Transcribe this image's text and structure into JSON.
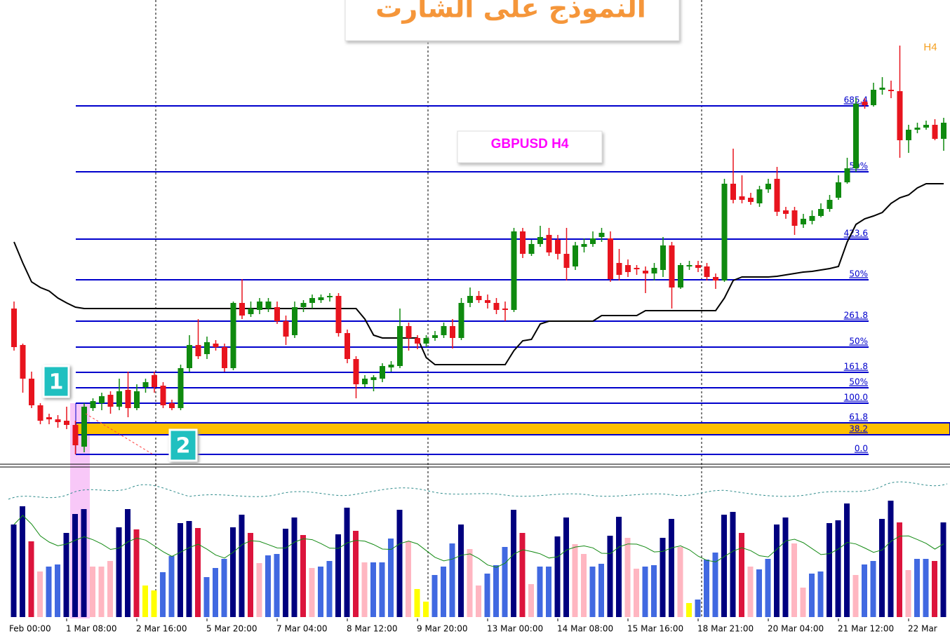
{
  "chart_data": {
    "type": "candlestick",
    "title": "النموذج على الشارت",
    "subtitle": "GBPUSD H4",
    "timeframe": "H4",
    "callouts": [
      "1",
      "2"
    ],
    "ylim": [
      0,
      660
    ],
    "bull_color": "#0f8a0f",
    "bear_color": "#e8141e",
    "ohlc": [
      [
        220,
        230,
        160,
        165
      ],
      [
        168,
        170,
        100,
        120
      ],
      [
        120,
        130,
        78,
        82
      ],
      [
        82,
        85,
        55,
        60
      ],
      [
        65,
        70,
        55,
        62
      ],
      [
        62,
        68,
        50,
        58
      ],
      [
        60,
        80,
        48,
        54
      ],
      [
        54,
        60,
        12,
        25
      ],
      [
        23,
        85,
        15,
        80
      ],
      [
        78,
        92,
        74,
        88
      ],
      [
        85,
        100,
        75,
        95
      ],
      [
        97,
        102,
        70,
        80
      ],
      [
        80,
        120,
        75,
        102
      ],
      [
        104,
        130,
        65,
        78
      ],
      [
        78,
        112,
        75,
        102
      ],
      [
        108,
        120,
        100,
        115
      ],
      [
        125,
        130,
        100,
        108
      ],
      [
        110,
        115,
        78,
        82
      ],
      [
        85,
        90,
        75,
        78
      ],
      [
        78,
        140,
        75,
        135
      ],
      [
        135,
        182,
        130,
        168
      ],
      [
        168,
        205,
        148,
        152
      ],
      [
        155,
        180,
        148,
        172
      ],
      [
        170,
        175,
        160,
        165
      ],
      [
        165,
        170,
        130,
        135
      ],
      [
        135,
        230,
        132,
        228
      ],
      [
        228,
        262,
        205,
        210
      ],
      [
        212,
        230,
        208,
        220
      ],
      [
        218,
        235,
        212,
        230
      ],
      [
        220,
        235,
        215,
        230
      ],
      [
        222,
        230,
        198,
        202
      ],
      [
        202,
        210,
        168,
        180
      ],
      [
        182,
        230,
        178,
        222
      ],
      [
        222,
        232,
        215,
        228
      ],
      [
        228,
        240,
        220,
        235
      ],
      [
        232,
        240,
        228,
        236
      ],
      [
        236,
        242,
        230,
        238
      ],
      [
        238,
        242,
        180,
        185
      ],
      [
        185,
        190,
        142,
        148
      ],
      [
        148,
        152,
        92,
        112
      ],
      [
        112,
        125,
        108,
        120
      ],
      [
        118,
        125,
        102,
        122
      ],
      [
        120,
        142,
        115,
        138
      ],
      [
        136,
        145,
        130,
        140
      ],
      [
        138,
        220,
        135,
        195
      ],
      [
        195,
        200,
        160,
        178
      ],
      [
        178,
        182,
        162,
        170
      ],
      [
        170,
        182,
        165,
        178
      ],
      [
        178,
        188,
        174,
        182
      ],
      [
        182,
        200,
        178,
        195
      ],
      [
        195,
        205,
        163,
        178
      ],
      [
        178,
        235,
        175,
        228
      ],
      [
        228,
        250,
        222,
        238
      ],
      [
        238,
        245,
        228,
        232
      ],
      [
        232,
        240,
        220,
        228
      ],
      [
        228,
        235,
        212,
        218
      ],
      [
        220,
        230,
        202,
        218
      ],
      [
        218,
        335,
        215,
        330
      ],
      [
        330,
        335,
        292,
        298
      ],
      [
        298,
        318,
        295,
        312
      ],
      [
        312,
        338,
        308,
        322
      ],
      [
        325,
        335,
        295,
        300
      ],
      [
        318,
        325,
        290,
        298
      ],
      [
        298,
        335,
        260,
        278
      ],
      [
        280,
        315,
        275,
        310
      ],
      [
        308,
        320,
        300,
        312
      ],
      [
        312,
        330,
        308,
        320
      ],
      [
        322,
        335,
        315,
        328
      ],
      [
        320,
        330,
        258,
        262
      ],
      [
        285,
        305,
        260,
        268
      ],
      [
        282,
        290,
        265,
        272
      ],
      [
        278,
        282,
        268,
        276
      ],
      [
        274,
        280,
        242,
        270
      ],
      [
        270,
        285,
        260,
        278
      ],
      [
        275,
        322,
        265,
        310
      ],
      [
        310,
        315,
        220,
        250
      ],
      [
        250,
        285,
        248,
        282
      ],
      [
        280,
        288,
        275,
        282
      ],
      [
        282,
        288,
        272,
        278
      ],
      [
        280,
        285,
        260,
        265
      ],
      [
        265,
        270,
        248,
        260
      ],
      [
        260,
        405,
        258,
        398
      ],
      [
        398,
        448,
        370,
        375
      ],
      [
        380,
        410,
        370,
        375
      ],
      [
        378,
        385,
        368,
        372
      ],
      [
        370,
        395,
        365,
        390
      ],
      [
        390,
        405,
        385,
        398
      ],
      [
        405,
        422,
        352,
        358
      ],
      [
        360,
        365,
        348,
        355
      ],
      [
        360,
        365,
        325,
        338
      ],
      [
        340,
        355,
        335,
        348
      ],
      [
        345,
        360,
        340,
        352
      ],
      [
        352,
        370,
        350,
        362
      ],
      [
        362,
        382,
        358,
        375
      ],
      [
        378,
        410,
        375,
        400
      ],
      [
        400,
        435,
        398,
        420
      ],
      [
        420,
        520,
        415,
        512
      ],
      [
        515,
        520,
        505,
        510
      ],
      [
        510,
        542,
        508,
        532
      ],
      [
        532,
        550,
        525,
        535
      ],
      [
        532,
        545,
        520,
        530
      ],
      [
        530,
        595,
        435,
        460
      ],
      [
        460,
        482,
        442,
        475
      ],
      [
        475,
        485,
        470,
        478
      ],
      [
        478,
        488,
        475,
        482
      ],
      [
        482,
        490,
        460,
        462
      ],
      [
        462,
        492,
        445,
        485
      ]
    ],
    "stop_line": [
      315,
      285,
      258,
      250,
      245,
      235,
      228,
      222,
      220,
      220,
      220,
      220,
      220,
      220,
      220,
      220,
      220,
      220,
      220,
      220,
      220,
      220,
      220,
      220,
      220,
      220,
      220,
      220,
      220,
      220,
      220,
      220,
      220,
      220,
      220,
      220,
      220,
      220,
      220,
      220,
      205,
      182,
      178,
      178,
      178,
      178,
      178,
      150,
      140,
      140,
      140,
      140,
      140,
      140,
      140,
      140,
      140,
      160,
      174,
      176,
      198,
      202,
      202,
      202,
      202,
      202,
      202,
      210,
      210,
      210,
      210,
      210,
      217,
      217,
      217,
      217,
      217,
      217,
      217,
      217,
      217,
      235,
      260,
      265,
      265,
      265,
      265,
      266,
      268,
      270,
      272,
      273,
      275,
      277,
      280,
      315,
      340,
      348,
      352,
      357,
      370,
      378,
      382,
      392,
      398,
      398,
      398
    ],
    "fib_levels": [
      {
        "value": 12,
        "label": "0.0"
      },
      {
        "value": 40,
        "label": "38.2"
      },
      {
        "value": 57,
        "label": "61.8"
      },
      {
        "value": 85,
        "label": "100.0"
      },
      {
        "value": 107,
        "label": "50%"
      },
      {
        "value": 129,
        "label": "161.8"
      },
      {
        "value": 165,
        "label": "50%"
      },
      {
        "value": 202,
        "label": "261.8"
      },
      {
        "value": 261,
        "label": "50%"
      },
      {
        "value": 319,
        "label": "423.6"
      },
      {
        "value": 415,
        "label": "50%"
      },
      {
        "value": 509,
        "label": "685.4"
      }
    ],
    "zone": [
      40,
      57
    ],
    "zone_color": "#ffc000",
    "x_labels": [
      "Feb 00:00",
      "1 Mar 08:00",
      "2 Mar 16:00",
      "5 Mar 20:00",
      "7 Mar 04:00",
      "8 Mar 12:00",
      "9 Mar 20:00",
      "13 Mar 00:00",
      "14 Mar 08:00",
      "15 Mar 16:00",
      "18 Mar 21:00",
      "20 Mar 04:00",
      "21 Mar 12:00",
      "22 Mar"
    ],
    "volume": {
      "ylim": [
        0,
        212
      ],
      "palette": {
        "n": "#00007f",
        "b": "#4169e1",
        "r": "#dc143c",
        "p": "#ffb6c1",
        "y": "#ffff00"
      },
      "values": [
        132,
        158,
        108,
        65,
        72,
        75,
        120,
        147,
        154,
        72,
        72,
        80,
        128,
        154,
        125,
        45,
        38,
        64,
        87,
        134,
        137,
        127,
        57,
        70,
        83,
        128,
        146,
        120,
        77,
        88,
        90,
        126,
        142,
        117,
        70,
        72,
        80,
        118,
        156,
        123,
        78,
        78,
        78,
        112,
        153,
        108,
        40,
        22,
        60,
        72,
        105,
        132,
        97,
        45,
        62,
        74,
        100,
        153,
        120,
        47,
        72,
        72,
        115,
        142,
        104,
        90,
        72,
        76,
        116,
        143,
        113,
        69,
        72,
        74,
        113,
        140,
        100,
        20,
        25,
        82,
        92,
        146,
        150,
        120,
        72,
        68,
        83,
        132,
        142,
        105,
        42,
        62,
        65,
        134,
        138,
        162,
        60,
        75,
        80,
        140,
        166,
        135,
        67,
        83,
        83,
        80,
        135
      ],
      "colors": "nnrpbbnnnpppnnryybbnnrbbbnnrpbbnnrpbbnnrpbbbnpyybbbnppbbbnrpbbnnppbbnnppbbnnpybbbnnrpbbnnppbbnnnpbbnnrpbbrn"
    }
  }
}
